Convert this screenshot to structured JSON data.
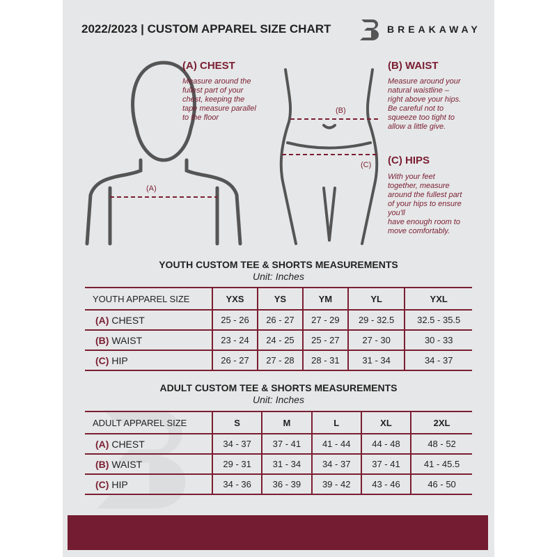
{
  "header": {
    "title": "2022/2023  |  CUSTOM APPAREL SIZE CHART",
    "brand": "BREAKAWAY",
    "logo_letter": "B"
  },
  "chest": {
    "heading": "(A) CHEST",
    "marker": "(A)",
    "lines": [
      "Measure around the",
      "fullest part of your",
      "chest, keeping the",
      "tape measure parallel",
      "to the floor"
    ]
  },
  "waist": {
    "heading": "(B) WAIST",
    "marker": "(B)",
    "lines": [
      "Measure around your",
      "natural waistline –",
      "right above your hips.",
      "Be careful not to",
      "squeeze too tight to",
      "allow a little give."
    ]
  },
  "hips": {
    "heading": "(C) HIPS",
    "marker": "(C)",
    "lines": [
      "With your feet",
      "together, measure",
      "around the fullest part",
      "of your hips to ensure",
      "you'll",
      "have enough room to",
      "move comfortably."
    ]
  },
  "youth": {
    "title": "YOUTH CUSTOM TEE & SHORTS MEASUREMENTS",
    "unit": "Unit: Inches",
    "header": [
      "YOUTH APPAREL SIZE",
      "YXS",
      "YS",
      "YM",
      "YL",
      "YXL"
    ],
    "rows": [
      {
        "letter": "(A)",
        "name": "CHEST",
        "values": [
          "25 - 26",
          "26 - 27",
          "27 - 29",
          "29 - 32.5",
          "32.5 - 35.5"
        ]
      },
      {
        "letter": "(B)",
        "name": "WAIST",
        "values": [
          "23 - 24",
          "24 - 25",
          "25 - 27",
          "27 - 30",
          "30 - 33"
        ]
      },
      {
        "letter": "(C)",
        "name": "HIP",
        "values": [
          "26 - 27",
          "27 - 28",
          "28 - 31",
          "31 - 34",
          "34 - 37"
        ]
      }
    ]
  },
  "adult": {
    "title": "ADULT CUSTOM TEE & SHORTS MEASUREMENTS",
    "unit": "Unit: Inches",
    "header": [
      "ADULT APPAREL SIZE",
      "S",
      "M",
      "L",
      "XL",
      "2XL"
    ],
    "rows": [
      {
        "letter": "(A)",
        "name": "CHEST",
        "values": [
          "34 - 37",
          "37 - 41",
          "41 - 44",
          "44 - 48",
          "48 - 52"
        ]
      },
      {
        "letter": "(B)",
        "name": "WAIST",
        "values": [
          "29 - 31",
          "31 - 34",
          "34 - 37",
          "37 - 41",
          "41 - 45.5"
        ]
      },
      {
        "letter": "(C)",
        "name": "HIP",
        "values": [
          "34 - 36",
          "36 - 39",
          "39 - 42",
          "43 - 46",
          "46 - 50"
        ]
      }
    ]
  },
  "colors": {
    "accent": "#7a1e32",
    "panel": "#e6e7e8",
    "band": "#741c31"
  }
}
